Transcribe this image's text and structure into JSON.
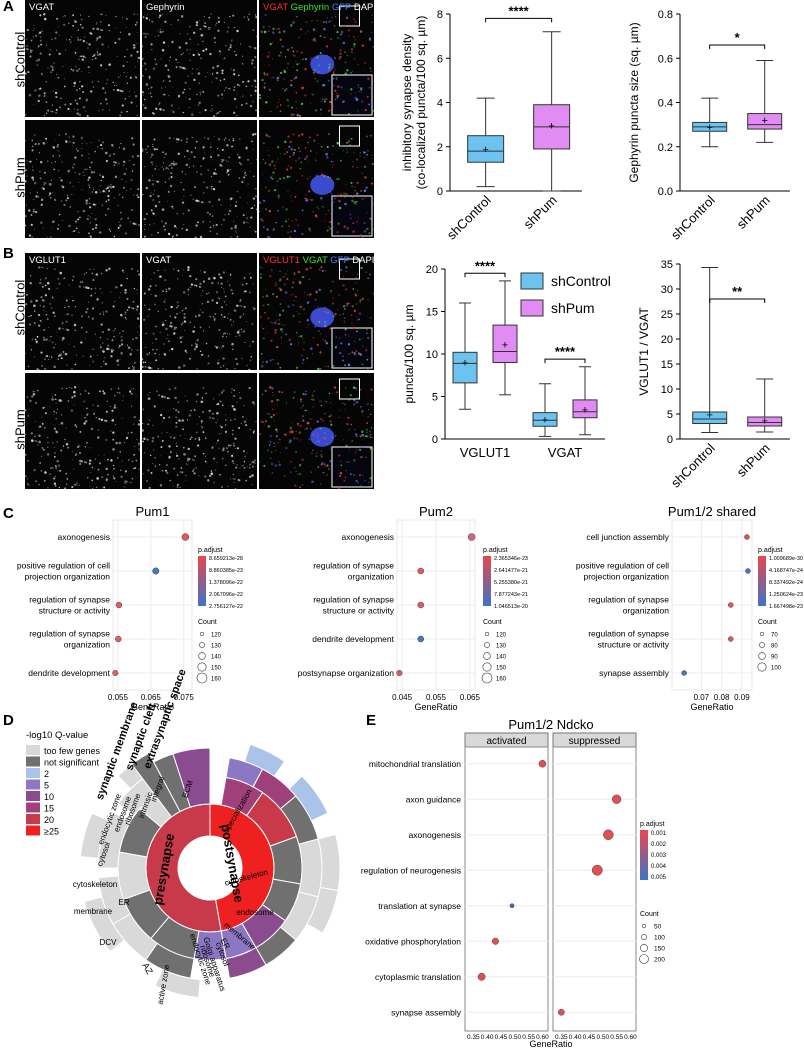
{
  "panels": {
    "a": "A",
    "b": "B",
    "c": "C",
    "d": "D",
    "e": "E"
  },
  "colors": {
    "control": "#6cc3f0",
    "pum": "#e18cf2",
    "box_edge": "#333333"
  },
  "panelA": {
    "col_titles": [
      "VGAT",
      "Gephyrin"
    ],
    "merge_title": [
      {
        "t": "VGAT",
        "c": "#ff3030"
      },
      {
        "t": " Gephyrin",
        "c": "#37e437"
      },
      {
        "t": " GFP",
        "c": "#4a7dff"
      },
      {
        "t": " DAPI",
        "c": "#ffffff"
      }
    ],
    "rows": [
      "shControl",
      "shPum"
    ]
  },
  "panelB": {
    "col_titles": [
      "VGLUT1",
      "VGAT"
    ],
    "merge_title": [
      {
        "t": "VGLUT1",
        "c": "#ff3030"
      },
      {
        "t": " VGAT",
        "c": "#37e437"
      },
      {
        "t": " GFP",
        "c": "#4a7dff"
      },
      {
        "t": " DAPI",
        "c": "#ffffff"
      }
    ],
    "rows": [
      "shControl",
      "shPum"
    ]
  },
  "chart_data": [
    {
      "id": "a1",
      "type": "box",
      "ylabel": [
        "inhibitory synapse density",
        "(co-localized puncta/100 sq. µm)"
      ],
      "ylim": [
        0,
        8
      ],
      "ticks": [
        0,
        2,
        4,
        6,
        8
      ],
      "categories": [
        "shControl",
        "shPum"
      ],
      "boxes": [
        {
          "min": 0.2,
          "q1": 1.3,
          "median": 1.8,
          "q3": 2.5,
          "max": 4.2,
          "mean": 1.9
        },
        {
          "min": 0.0,
          "q1": 1.9,
          "median": 2.9,
          "q3": 3.9,
          "max": 7.2,
          "mean": 2.95
        }
      ],
      "sig": "****"
    },
    {
      "id": "a2",
      "type": "box",
      "ylabel": [
        "Gephyrin puncta size (sq. µm)"
      ],
      "ylim": [
        0,
        0.8
      ],
      "ticks": [
        0.0,
        0.2,
        0.4,
        0.6,
        0.8
      ],
      "categories": [
        "shControl",
        "shPum"
      ],
      "boxes": [
        {
          "min": 0.2,
          "q1": 0.27,
          "median": 0.29,
          "q3": 0.31,
          "max": 0.42,
          "mean": 0.29
        },
        {
          "min": 0.22,
          "q1": 0.28,
          "median": 0.3,
          "q3": 0.35,
          "max": 0.59,
          "mean": 0.32
        }
      ],
      "sig": "*"
    },
    {
      "id": "b1",
      "type": "box",
      "ylabel": [
        "puncta/100 sq. µm"
      ],
      "ylim": [
        0,
        20
      ],
      "ticks": [
        0,
        5,
        10,
        15,
        20
      ],
      "categories": [
        "VGLUT1",
        "VGAT"
      ],
      "legend": [
        "shControl",
        "shPum"
      ],
      "groups": [
        {
          "sig": "****",
          "boxes": [
            {
              "min": 3.5,
              "q1": 6.6,
              "median": 8.9,
              "q3": 10.2,
              "max": 16.0,
              "mean": 9.0
            },
            {
              "min": 5.2,
              "q1": 9.0,
              "median": 10.3,
              "q3": 13.4,
              "max": 18.6,
              "mean": 11.1
            }
          ]
        },
        {
          "sig": "****",
          "boxes": [
            {
              "min": 0.3,
              "q1": 1.5,
              "median": 2.2,
              "q3": 3.1,
              "max": 6.5,
              "mean": 2.3
            },
            {
              "min": 0.5,
              "q1": 2.5,
              "median": 3.2,
              "q3": 4.6,
              "max": 8.5,
              "mean": 3.5
            }
          ]
        }
      ]
    },
    {
      "id": "b2",
      "type": "box",
      "ylabel": [
        "VGLUT1 / VGAT"
      ],
      "ylim": [
        0,
        35
      ],
      "ticks": [
        0,
        5,
        10,
        15,
        20,
        25,
        30,
        35
      ],
      "categories": [
        "shControl",
        "shPum"
      ],
      "boxes": [
        {
          "min": 1.3,
          "q1": 3.1,
          "median": 4.0,
          "q3": 5.4,
          "max": 34.3,
          "mean": 4.9
        },
        {
          "min": 1.4,
          "q1": 2.6,
          "median": 3.3,
          "q3": 4.4,
          "max": 12.0,
          "mean": 3.7
        }
      ],
      "sig": "**"
    },
    {
      "id": "c1",
      "type": "dot",
      "title": "Pum1",
      "xlabel": "GeneRatio",
      "xlim": [
        0.0535,
        0.0775
      ],
      "xticks": [
        "0.055",
        "0.065",
        "0.075"
      ],
      "xtickv": [
        0.055,
        0.065,
        0.075
      ],
      "terms": [
        "axonogenesis",
        "positive regulation of cell\nprojection organization",
        "regulation of synapse\nstructure or activity",
        "regulation of synapse\norganization",
        "dendrite development"
      ],
      "x": [
        0.0755,
        0.0665,
        0.0553,
        0.0551,
        0.0542
      ],
      "size": [
        160,
        140,
        125,
        125,
        115
      ],
      "color": [
        "#e05a5a",
        "#3c7cc0",
        "#e06060",
        "#e06060",
        "#e06060"
      ],
      "legend_title": "p.adjust",
      "legend_vals": [
        "8.659213e-28",
        "8.860385e-23",
        "1.378096e-22",
        "2.067096e-22",
        "2.756127e-22"
      ],
      "count_title": "Count",
      "count_vals": [
        "120",
        "130",
        "140",
        "150",
        "160"
      ]
    },
    {
      "id": "c2",
      "type": "dot",
      "title": "Pum2",
      "xlabel": "GeneRatio",
      "xlim": [
        0.0435,
        0.0665
      ],
      "xticks": [
        "0.045",
        "0.055",
        "0.065"
      ],
      "xtickv": [
        0.045,
        0.055,
        0.065
      ],
      "terms": [
        "axonogenesis",
        "regulation of synapse\norganization",
        "regulation of synapse\nstructure or activity",
        "dendrite development",
        "postsynapse organization"
      ],
      "x": [
        0.0655,
        0.0505,
        0.0505,
        0.0505,
        0.0442
      ],
      "size": [
        160,
        130,
        130,
        130,
        115
      ],
      "color": [
        "#c86a80",
        "#e05a5a",
        "#e05a5a",
        "#3c7cc0",
        "#e05a5a"
      ],
      "legend_title": "p.adjust",
      "legend_vals": [
        "2.365346e-23",
        "2.641477e-21",
        "5.255380e-21",
        "7.877243e-21",
        "1.046513e-20"
      ],
      "count_title": "Count",
      "count_vals": [
        "120",
        "130",
        "140",
        "150",
        "160"
      ]
    },
    {
      "id": "c3",
      "type": "dot",
      "title": "Pum1/2 shared",
      "xlabel": "GeneRatio",
      "xlim": [
        0.0555,
        0.095
      ],
      "xticks": [
        "0.07",
        "0.08",
        "0.09"
      ],
      "xtickv": [
        0.07,
        0.08,
        0.09
      ],
      "terms": [
        "cell junction assembly",
        "positive regulation of cell\nprojection organization",
        "regulation of synapse\norganization",
        "regulation of synapse\nstructure or activity",
        "synapse assembly"
      ],
      "x": [
        0.0925,
        0.093,
        0.0845,
        0.0845,
        0.0615
      ],
      "size": [
        100,
        100,
        85,
        85,
        60
      ],
      "color": [
        "#e05050",
        "#3c7cc0",
        "#e05a5a",
        "#e05a5a",
        "#3c7cc0"
      ],
      "legend_title": "p.adjust",
      "legend_vals": [
        "1.009689e-30",
        "4.168747e-24",
        "8.337492e-24",
        "1.250624e-23",
        "1.667498e-23"
      ],
      "count_title": "Count",
      "count_vals": [
        "70",
        "80",
        "90",
        "100"
      ]
    },
    {
      "id": "e",
      "type": "dot",
      "title": "Pum1/2 Ndcko",
      "xlabel": "GeneRatio",
      "facets": [
        "activated",
        "suppressed"
      ],
      "xlim": [
        0.32,
        0.62
      ],
      "xticks": [
        "0.35",
        "0.40",
        "0.45",
        "0.50",
        "0.55",
        "0.60"
      ],
      "xtickv": [
        0.35,
        0.4,
        0.45,
        0.5,
        0.55,
        0.6
      ],
      "terms": [
        "mitochondrial translation",
        "axon guidance",
        "axonogenesis",
        "regulation of neurogenesis",
        "translation at synapse",
        "oxidative phosphorylation",
        "cytoplasmic translation",
        "synapse assembly"
      ],
      "points": [
        {
          "facet": 0,
          "x": 0.6,
          "size": 70,
          "color": "#e05050"
        },
        {
          "facet": 1,
          "x": 0.55,
          "size": 110,
          "color": "#e05050"
        },
        {
          "facet": 1,
          "x": 0.52,
          "size": 140,
          "color": "#e05050"
        },
        {
          "facet": 1,
          "x": 0.48,
          "size": 150,
          "color": "#e05050"
        },
        {
          "facet": 0,
          "x": 0.49,
          "size": 25,
          "color": "#3c6ab0"
        },
        {
          "facet": 0,
          "x": 0.43,
          "size": 60,
          "color": "#e05050"
        },
        {
          "facet": 0,
          "x": 0.38,
          "size": 75,
          "color": "#e05050"
        },
        {
          "facet": 1,
          "x": 0.35,
          "size": 55,
          "color": "#e05050"
        }
      ],
      "legend_title": "p.adjust",
      "legend_vals": [
        "0.001",
        "0.002",
        "0.003",
        "0.004",
        "0.005"
      ],
      "count_title": "Count",
      "count_vals": [
        "50",
        "100",
        "150",
        "200"
      ]
    }
  ],
  "panelD": {
    "legend_title": "-log10 Q-value",
    "legend": [
      {
        "label": "too few genes",
        "color": "#d9d9d9"
      },
      {
        "label": "not significant",
        "color": "#707070"
      },
      {
        "label": "2",
        "color": "#a9c4e8"
      },
      {
        "label": "5",
        "color": "#8c77c2"
      },
      {
        "label": "10",
        "color": "#8a4b8f"
      },
      {
        "label": "15",
        "color": "#a0407a"
      },
      {
        "label": "20",
        "color": "#c83a4a"
      },
      {
        "label": "≥25",
        "color": "#ef2020"
      }
    ],
    "center_labels": [
      "presynapse",
      "postsynapse"
    ],
    "labels": [
      "synaptic membrane",
      "synaptic cleft",
      "extrasynaptic space",
      "ECM",
      "integral",
      "intrinsic",
      "ribosome",
      "endosome",
      "endocytic zone",
      "cytosol",
      "specialization",
      "cytoskeleton",
      "endosome",
      "membrane",
      "ER",
      "cytosol",
      "Golgi apparatus",
      "ribosome",
      "endocytic zone",
      "cytoskeleton",
      "membrane",
      "DCV",
      "AZ",
      "active zone",
      "ER"
    ]
  }
}
